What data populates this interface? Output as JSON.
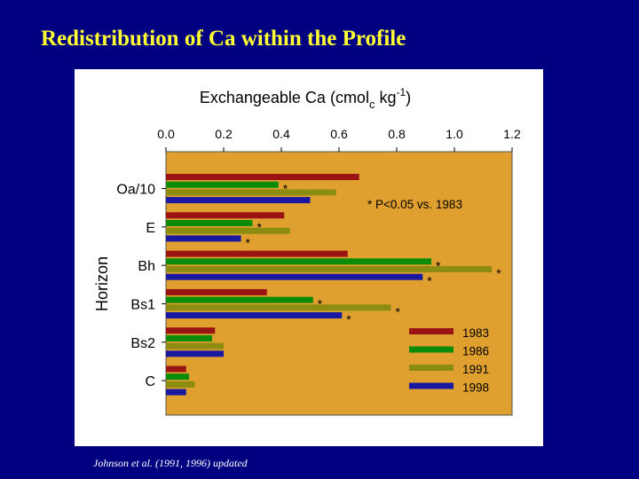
{
  "slide": {
    "title": "Redistribution of Ca within the Profile",
    "caption": "Johnson et al. (1991, 1996) updated"
  },
  "chart_data": {
    "type": "bar",
    "orientation": "horizontal",
    "title_main": "Exchangeable Ca (cmol",
    "title_sub": "c",
    "title_unit": " kg",
    "title_sup": "-1",
    "title_end": ")",
    "ylabel": "Horizon",
    "xlim": [
      0.0,
      1.2
    ],
    "xticks": [
      "0.0",
      "0.2",
      "0.4",
      "0.6",
      "0.8",
      "1.0",
      "1.2"
    ],
    "categories": [
      "Oa/10",
      "E",
      "Bh",
      "Bs1",
      "Bs2",
      "C"
    ],
    "series": [
      {
        "name": "1983",
        "color": "#9b1414",
        "values": [
          0.67,
          0.41,
          0.63,
          0.35,
          0.17,
          0.07
        ]
      },
      {
        "name": "1986",
        "color": "#0a8c0a",
        "values": [
          0.39,
          0.3,
          0.92,
          0.51,
          0.16,
          0.08
        ]
      },
      {
        "name": "1991",
        "color": "#8c8c10",
        "values": [
          0.59,
          0.43,
          1.13,
          0.78,
          0.2,
          0.1
        ]
      },
      {
        "name": "1998",
        "color": "#1818a0",
        "values": [
          0.5,
          0.26,
          0.89,
          0.61,
          0.2,
          0.07
        ]
      }
    ],
    "significance": [
      [
        false,
        true,
        false,
        false
      ],
      [
        false,
        true,
        false,
        true
      ],
      [
        false,
        true,
        true,
        true
      ],
      [
        false,
        true,
        true,
        true
      ],
      [
        false,
        false,
        false,
        false
      ],
      [
        false,
        false,
        false,
        false
      ]
    ],
    "significance_mark": "*",
    "annotation": "* P<0.05 vs. 1983",
    "plot_background": "#e0a030",
    "legend_position": "lower-right",
    "grid": false
  }
}
